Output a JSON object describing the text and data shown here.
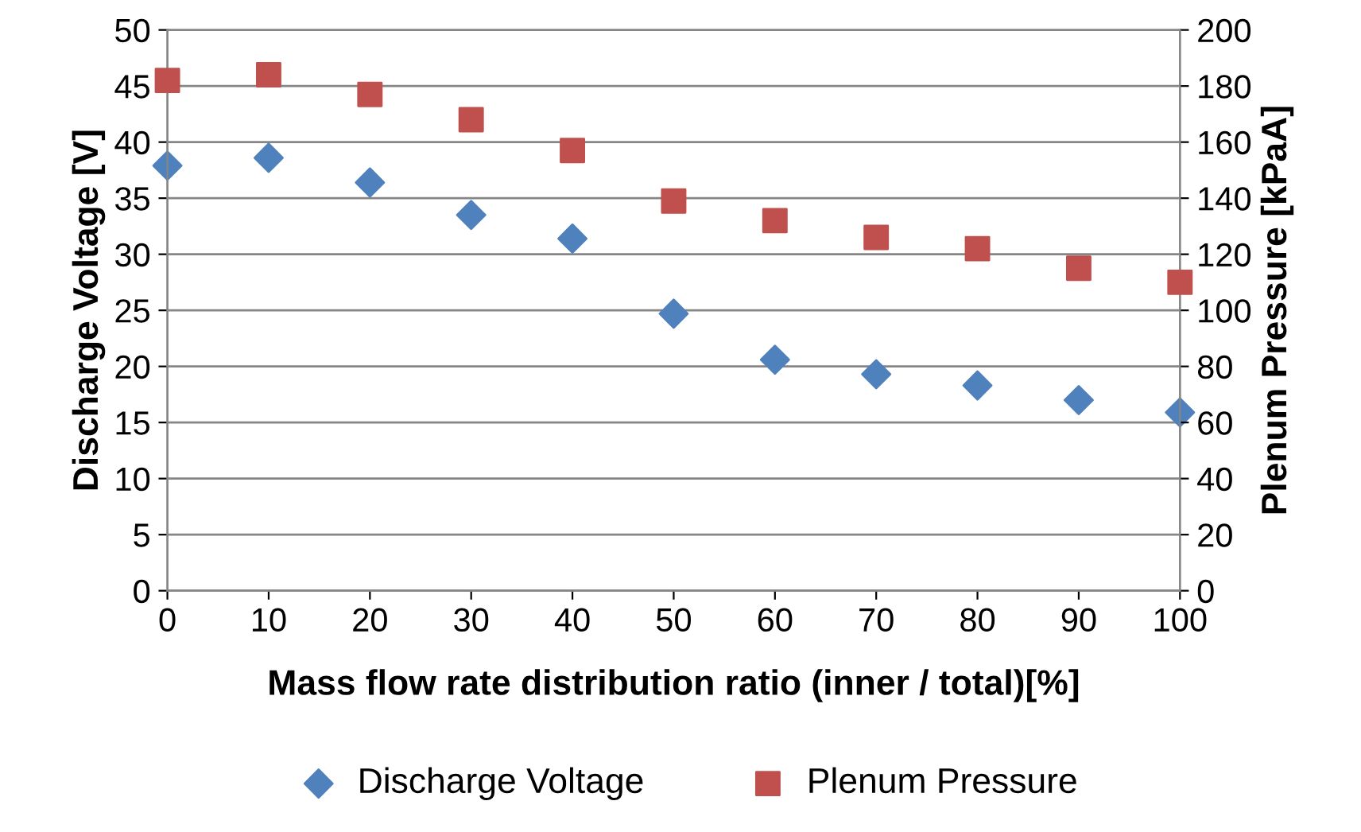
{
  "chart_data": {
    "type": "scatter",
    "xlabel": "Mass flow rate distribution ratio (inner / total)[%]",
    "ylabel": "Discharge Voltage [V]",
    "y2label": "Plenum Pressure [kPaA]",
    "x": [
      0,
      10,
      20,
      30,
      40,
      50,
      60,
      70,
      80,
      90,
      100
    ],
    "series": [
      {
        "name": "Discharge Voltage",
        "color": "#4f81bd",
        "marker": "diamond",
        "values": [
          37.9,
          38.6,
          36.4,
          33.5,
          31.4,
          24.7,
          20.6,
          19.3,
          18.3,
          17.0,
          15.9
        ]
      },
      {
        "name": "Plenum Pressure",
        "color": "#c0504d",
        "marker": "square",
        "axis": "y2",
        "values": [
          182,
          184,
          177,
          168,
          157,
          139,
          132,
          126,
          122,
          115,
          110
        ]
      }
    ],
    "xlim": [
      0,
      100
    ],
    "xticks": [
      0,
      10,
      20,
      30,
      40,
      50,
      60,
      70,
      80,
      90,
      100
    ],
    "ylim": [
      0,
      50
    ],
    "yticks": [
      0,
      5,
      10,
      15,
      20,
      25,
      30,
      35,
      40,
      45,
      50
    ],
    "y2lim": [
      0,
      200
    ],
    "y2ticks": [
      0,
      20,
      40,
      60,
      80,
      100,
      120,
      140,
      160,
      180,
      200
    ],
    "grid": "y",
    "legend": "bottom"
  }
}
